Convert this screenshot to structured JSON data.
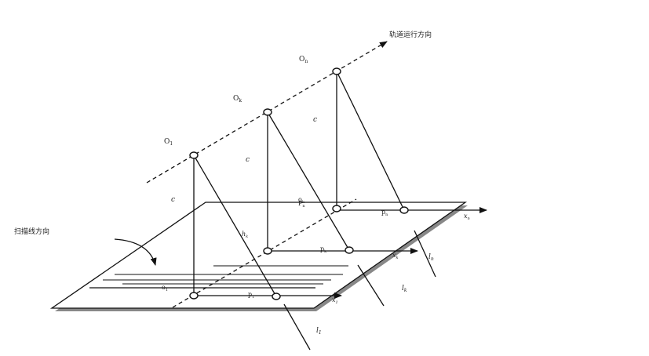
{
  "labels": {
    "orbit_direction": "轨道运行方向",
    "scan_direction": "扫描线方向",
    "O1": "O",
    "O1_sub": "1",
    "Ok": "O",
    "Ok_sub": "k",
    "On": "O",
    "On_sub": "n",
    "c1": "c",
    "c2": "c",
    "c3": "c",
    "o1": "o",
    "o1_sub": "1",
    "p1": "p",
    "p1_sub": "1",
    "pk": "p",
    "pk_sub": "k",
    "pn": "p",
    "pn_sub": "n",
    "Pn": "P",
    "Pn_sub": "n",
    "ok": "o",
    "ok_sub": "k",
    "x1": "x",
    "x1_sub": "1",
    "xk": "x",
    "xk_sub": "k",
    "xn": "x",
    "xn_sub": "n",
    "l1": "l",
    "l1_sub": "1",
    "lk": "l",
    "lk_sub": "k",
    "ln": "l",
    "ln_sub": "n",
    "hk": "h",
    "hk_sub": "k"
  }
}
